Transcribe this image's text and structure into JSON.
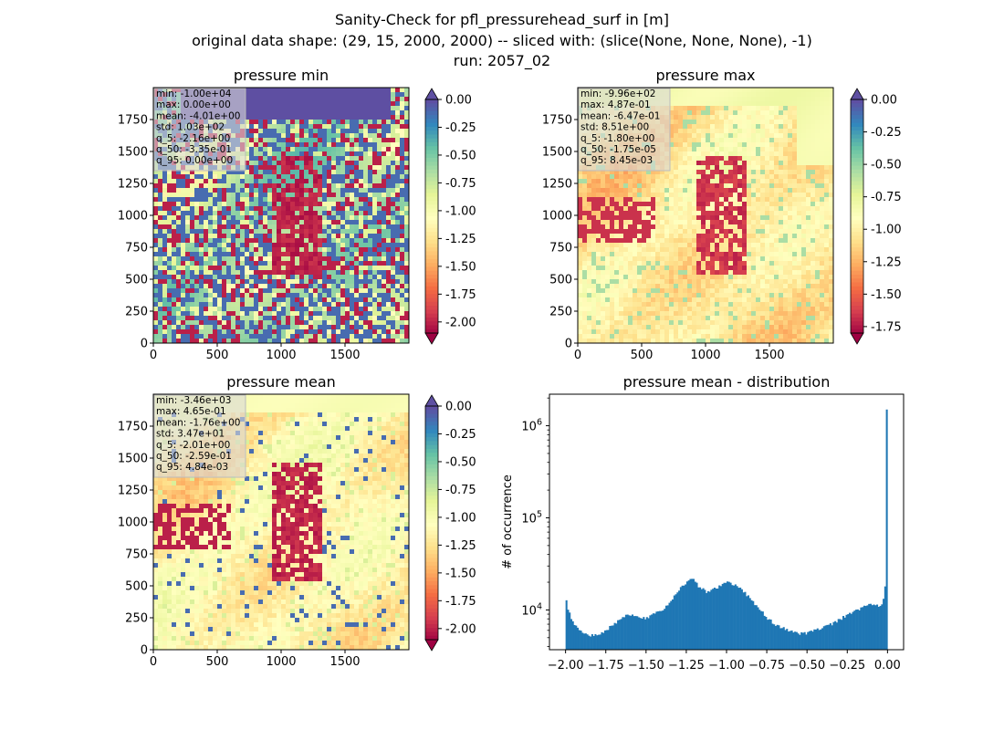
{
  "figure": {
    "title_lines": [
      "Sanity-Check for pfl_pressurehead_surf in [m]",
      "original data shape: (29, 15, 2000, 2000) -- sliced with: (slice(None, None, None), -1)",
      "run: 2057_02"
    ]
  },
  "colors": {
    "colormap": "Spectral",
    "cmap_stops": [
      "#9e0142",
      "#d53e4f",
      "#f46d43",
      "#fdae61",
      "#fee08b",
      "#ffffbf",
      "#e6f598",
      "#abdda4",
      "#66c2a5",
      "#3288bd",
      "#5e4fa2"
    ],
    "histogram_bar": "#1f77b4",
    "stats_box_bg": "#d9d9d9"
  },
  "chart_data": [
    {
      "type": "heatmap",
      "title": "pressure min",
      "xlabel": "",
      "ylabel": "",
      "xlim": [
        0,
        2000
      ],
      "ylim": [
        0,
        2000
      ],
      "xticks": [
        0,
        500,
        1000,
        1500
      ],
      "yticks": [
        0,
        250,
        500,
        750,
        1000,
        1250,
        1500,
        1750
      ],
      "colorbar": {
        "vmin": -2.1,
        "vmax": 0.0,
        "ticks": [
          "0.00",
          "-0.25",
          "-0.50",
          "-0.75",
          "-1.00",
          "-1.25",
          "-1.50",
          "-1.75",
          "-2.00"
        ],
        "extend": "both"
      },
      "stats": [
        "min: -1.00e+04",
        "max: 0.00e+00",
        "mean: -4.01e+00",
        "std: 1.03e+02",
        "q_5: -2.16e+00",
        "q_50: -3.35e-01",
        "q_95: 0.00e+00"
      ]
    },
    {
      "type": "heatmap",
      "title": "pressure max",
      "xlabel": "",
      "ylabel": "",
      "xlim": [
        0,
        2000
      ],
      "ylim": [
        0,
        2000
      ],
      "xticks": [
        0,
        500,
        1000,
        1500
      ],
      "yticks": [
        0,
        250,
        500,
        750,
        1000,
        1250,
        1500,
        1750
      ],
      "colorbar": {
        "vmin": -1.8,
        "vmax": 0.0,
        "ticks": [
          "0.00",
          "-0.25",
          "-0.50",
          "-0.75",
          "-1.00",
          "-1.25",
          "-1.50",
          "-1.75"
        ],
        "extend": "both"
      },
      "stats": [
        "min: -9.96e+02",
        "max: 4.87e-01",
        "mean: -6.47e-01",
        "std: 8.51e+00",
        "q_5: -1.80e+00",
        "q_50: -1.75e-05",
        "q_95: 8.45e-03"
      ]
    },
    {
      "type": "heatmap",
      "title": "pressure mean",
      "xlabel": "",
      "ylabel": "",
      "xlim": [
        0,
        2000
      ],
      "ylim": [
        0,
        2000
      ],
      "xticks": [
        0,
        500,
        1000,
        1500
      ],
      "yticks": [
        0,
        250,
        500,
        750,
        1000,
        1250,
        1500,
        1750
      ],
      "colorbar": {
        "vmin": -2.1,
        "vmax": 0.0,
        "ticks": [
          "0.00",
          "-0.25",
          "-0.50",
          "-0.75",
          "-1.00",
          "-1.25",
          "-1.50",
          "-1.75",
          "-2.00"
        ],
        "extend": "both"
      },
      "stats": [
        "min: -3.46e+03",
        "max: 4.65e-01",
        "mean: -1.76e+00",
        "std: 3.47e+01",
        "q_5: -2.01e+00",
        "q_50: -2.59e-01",
        "q_95: 4.84e-03"
      ]
    },
    {
      "type": "bar",
      "title": "pressure mean - distribution",
      "xlabel": "",
      "ylabel": "# of occurrence",
      "yscale": "log",
      "xlim": [
        -2.1,
        0.1
      ],
      "ylim": [
        3700,
        2200000
      ],
      "xticks": [
        "-2.00",
        "-1.75",
        "-1.50",
        "-1.25",
        "-1.00",
        "-0.75",
        "-0.50",
        "-0.25",
        "0.00"
      ],
      "yticks": [
        {
          "base": "10",
          "exp": "4",
          "value": 10000
        },
        {
          "base": "10",
          "exp": "5",
          "value": 100000
        },
        {
          "base": "10",
          "exp": "6",
          "value": 1000000
        }
      ],
      "bin_range": [
        -2.0,
        0.0
      ],
      "bins": 200,
      "profile": [
        [
          -2.0,
          13500
        ],
        [
          -1.98,
          9500
        ],
        [
          -1.95,
          7000
        ],
        [
          -1.9,
          5700
        ],
        [
          -1.85,
          5200
        ],
        [
          -1.8,
          5400
        ],
        [
          -1.75,
          6000
        ],
        [
          -1.7,
          7000
        ],
        [
          -1.65,
          8300
        ],
        [
          -1.6,
          9000
        ],
        [
          -1.55,
          8700
        ],
        [
          -1.5,
          8000
        ],
        [
          -1.45,
          9000
        ],
        [
          -1.4,
          10000
        ],
        [
          -1.35,
          12000
        ],
        [
          -1.3,
          16000
        ],
        [
          -1.25,
          20000
        ],
        [
          -1.22,
          23000
        ],
        [
          -1.18,
          18500
        ],
        [
          -1.12,
          15500
        ],
        [
          -1.06,
          17500
        ],
        [
          -1.0,
          20000
        ],
        [
          -0.95,
          19000
        ],
        [
          -0.9,
          16500
        ],
        [
          -0.85,
          13000
        ],
        [
          -0.8,
          10500
        ],
        [
          -0.75,
          8200
        ],
        [
          -0.7,
          7000
        ],
        [
          -0.65,
          6400
        ],
        [
          -0.6,
          5800
        ],
        [
          -0.55,
          5500
        ],
        [
          -0.5,
          5600
        ],
        [
          -0.45,
          6000
        ],
        [
          -0.4,
          6500
        ],
        [
          -0.35,
          7000
        ],
        [
          -0.3,
          7800
        ],
        [
          -0.25,
          8800
        ],
        [
          -0.2,
          9800
        ],
        [
          -0.15,
          10800
        ],
        [
          -0.1,
          11800
        ],
        [
          -0.06,
          11000
        ],
        [
          -0.03,
          12000
        ],
        [
          -0.01,
          18000
        ],
        [
          0.0,
          1500000
        ]
      ]
    }
  ]
}
